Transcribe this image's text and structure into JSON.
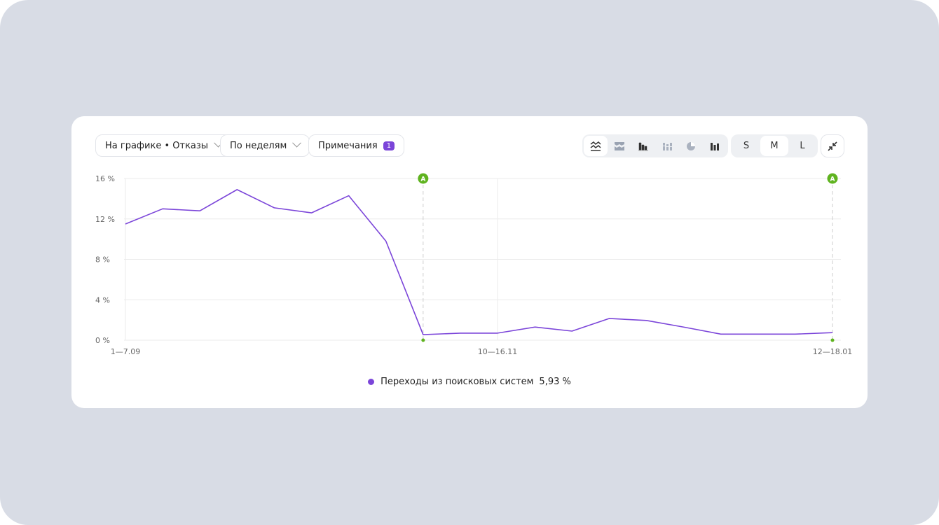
{
  "toolbar": {
    "metric_select": "На графике • Отказы",
    "period_select": "По неделям",
    "notes_label": "Примечания",
    "notes_count": "1",
    "chart_types": [
      "line-chart-icon",
      "stacked-area-icon",
      "bar-chart-icon",
      "stacked-bar-icon",
      "pie-chart-icon",
      "column-chart-icon"
    ],
    "sizes": [
      "S",
      "M",
      "L"
    ],
    "selected_size": "M"
  },
  "colors": {
    "series": "#7b45d9",
    "annotation": "#5fb31f",
    "grid": "#ebebeb"
  },
  "chart_data": {
    "type": "line",
    "ylabel": "",
    "xlabel": "",
    "ylim": [
      0,
      16
    ],
    "yticks": [
      "0 %",
      "4 %",
      "8 %",
      "12 %",
      "16 %"
    ],
    "ytick_values": [
      0,
      4,
      8,
      12,
      16
    ],
    "xtick_labels": [
      {
        "index": 0,
        "label": "1—7.09"
      },
      {
        "index": 10,
        "label": "10—16.11"
      },
      {
        "index": 19,
        "label": "12—18.01"
      }
    ],
    "annotations": [
      {
        "index": 8,
        "label": "A"
      },
      {
        "index": 19,
        "label": "A"
      }
    ],
    "series": [
      {
        "name": "Переходы из поисковых систем",
        "total": "5,93 %",
        "values": [
          11.5,
          13.0,
          12.8,
          14.9,
          13.1,
          12.6,
          14.3,
          9.8,
          0.55,
          0.7,
          0.7,
          1.3,
          0.9,
          2.15,
          1.95,
          1.3,
          0.6,
          0.6,
          0.6,
          0.75
        ]
      }
    ],
    "grid": true,
    "legend": "bottom"
  }
}
